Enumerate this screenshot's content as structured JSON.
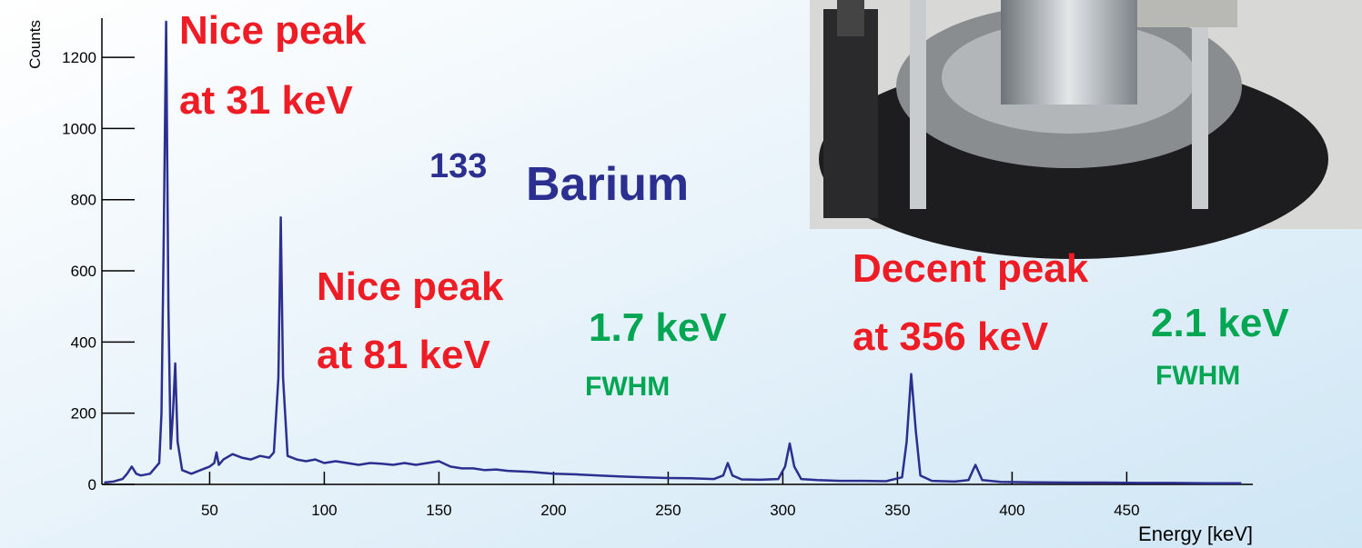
{
  "chart_data": {
    "type": "line",
    "x_label": "Energy [keV]",
    "y_label": "Counts",
    "color": "#2b2f8f",
    "xlim": [
      3,
      505
    ],
    "ylim": [
      0,
      1310
    ],
    "xticks": [
      50,
      100,
      150,
      200,
      250,
      300,
      350,
      400,
      450
    ],
    "yticks": [
      0,
      200,
      400,
      600,
      800,
      1000,
      1200
    ],
    "x": [
      4,
      8,
      12,
      14,
      16,
      18,
      20,
      24,
      28,
      29,
      30,
      31,
      32,
      33,
      34,
      35,
      36,
      38,
      42,
      46,
      50,
      52,
      53,
      54,
      56,
      60,
      64,
      68,
      72,
      76,
      78,
      80,
      81,
      82,
      84,
      88,
      92,
      96,
      100,
      105,
      110,
      115,
      120,
      125,
      130,
      135,
      140,
      145,
      150,
      155,
      160,
      165,
      170,
      175,
      180,
      190,
      200,
      210,
      220,
      230,
      240,
      250,
      260,
      270,
      274,
      276,
      278,
      282,
      290,
      298,
      301,
      303,
      305,
      308,
      315,
      325,
      335,
      345,
      352,
      354,
      356,
      358,
      360,
      365,
      375,
      381,
      384,
      387,
      395,
      410,
      425,
      440,
      455,
      470,
      485,
      500
    ],
    "values": [
      5,
      8,
      15,
      30,
      50,
      30,
      25,
      30,
      60,
      200,
      700,
      1300,
      500,
      100,
      200,
      340,
      120,
      40,
      30,
      40,
      50,
      60,
      90,
      55,
      70,
      85,
      75,
      70,
      80,
      75,
      90,
      300,
      750,
      300,
      80,
      70,
      65,
      70,
      60,
      65,
      60,
      55,
      60,
      58,
      55,
      60,
      55,
      60,
      65,
      50,
      45,
      45,
      40,
      42,
      38,
      35,
      30,
      28,
      25,
      22,
      20,
      18,
      17,
      15,
      25,
      60,
      25,
      14,
      13,
      15,
      50,
      115,
      50,
      15,
      12,
      10,
      10,
      9,
      20,
      120,
      310,
      150,
      25,
      10,
      8,
      12,
      55,
      12,
      7,
      6,
      5,
      5,
      4,
      4,
      3,
      3
    ],
    "annotations": [
      "Nice peak",
      "at 31 keV",
      "133",
      "Barium",
      "Nice peak",
      "at 81 keV",
      "1.7 keV",
      "FWHM",
      "Decent peak",
      "at 356 keV",
      "2.1 keV",
      "FWHM"
    ]
  }
}
